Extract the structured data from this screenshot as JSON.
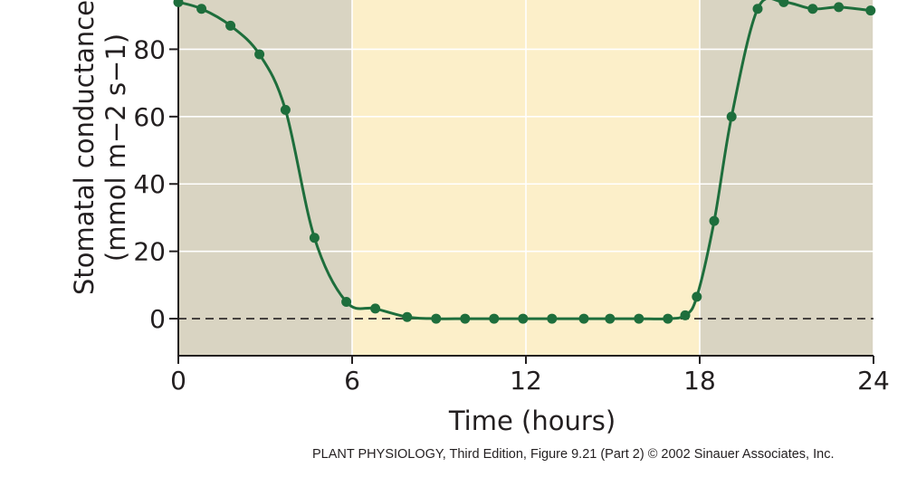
{
  "chart_data": {
    "type": "line",
    "xlabel": "Time (hours)",
    "ylabel_line1": "Stomatal conductance",
    "ylabel_line2": "(mmol m−2 s−1)",
    "x_ticks": [
      0,
      6,
      12,
      18,
      24
    ],
    "y_ticks": [
      0,
      20,
      40,
      60,
      80
    ],
    "xlim": [
      0,
      24
    ],
    "ylim": [
      -11,
      100
    ],
    "grid": true,
    "reference_line_y": 0,
    "shaded_regions": [
      {
        "x0": 0,
        "x1": 6,
        "color": "#d9d4c2"
      },
      {
        "x0": 6,
        "x1": 18,
        "color": "#fcefc9"
      },
      {
        "x0": 18,
        "x1": 24,
        "color": "#d9d4c2"
      }
    ],
    "line_color": "#1e6e3c",
    "series": [
      {
        "x": [
          0,
          0.8,
          1.8,
          2.8,
          3.7,
          4.7,
          5.8,
          6.8,
          7.9,
          8.9,
          9.9,
          10.9,
          11.9,
          12.9,
          14.0,
          14.9,
          15.9,
          16.9,
          17.5,
          17.9,
          18.5,
          19.1,
          20.0,
          20.9,
          21.9,
          22.8,
          23.9
        ],
        "y": [
          94,
          92,
          87,
          78.5,
          62,
          24,
          5,
          3,
          0.5,
          0,
          0,
          0,
          0,
          0,
          0,
          0,
          0,
          0,
          1,
          6.5,
          29,
          60,
          92,
          94,
          92,
          92.5,
          91.5
        ]
      }
    ]
  },
  "caption": {
    "book": "PLANT PHYSIOLOGY",
    "rest": ", Third Edition, Figure 9.21 (Part 2)  © 2002 Sinauer Associates, Inc."
  }
}
